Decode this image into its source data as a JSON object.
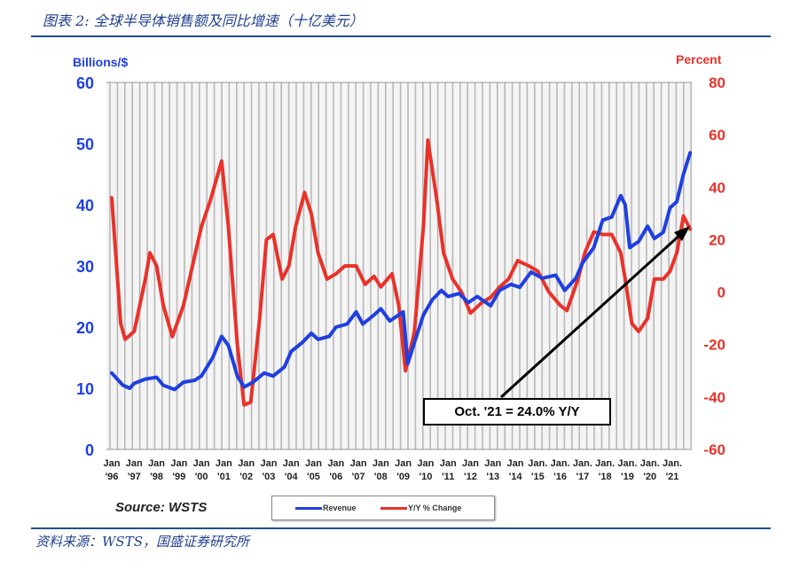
{
  "header": {
    "title": "图表 2:  全球半导体销售额及同比增速（十亿美元）"
  },
  "footer": {
    "source_note": "资料来源：WSTS，国盛证券研究所"
  },
  "chart_data": {
    "type": "line",
    "title": "",
    "ylabel_left": "Billions/$",
    "ylabel_right": "Percent",
    "ylim_left": [
      0,
      60
    ],
    "ylim_right": [
      -60,
      80
    ],
    "yticks_left": [
      "0",
      "10",
      "20",
      "30",
      "40",
      "50",
      "60"
    ],
    "yticks_right": [
      "-60",
      "-40",
      "-20",
      "0",
      "20",
      "40",
      "60",
      "80"
    ],
    "xlim": [
      1995.8,
      2021.95
    ],
    "xticks": [
      {
        "top": "Jan",
        "bottom": "'96"
      },
      {
        "top": "Jan",
        "bottom": "'97"
      },
      {
        "top": "Jan",
        "bottom": "'98"
      },
      {
        "top": "Jan",
        "bottom": "'99"
      },
      {
        "top": "Jan",
        "bottom": "'00"
      },
      {
        "top": "Jan",
        "bottom": "'01"
      },
      {
        "top": "Jan",
        "bottom": "'02"
      },
      {
        "top": "Jan",
        "bottom": "'03"
      },
      {
        "top": "Jan",
        "bottom": "'04"
      },
      {
        "top": "Jan",
        "bottom": "'05"
      },
      {
        "top": "Jan",
        "bottom": "'06"
      },
      {
        "top": "Jan",
        "bottom": "'07"
      },
      {
        "top": "Jan",
        "bottom": "'08"
      },
      {
        "top": "Jan",
        "bottom": "'09"
      },
      {
        "top": "Jan",
        "bottom": "'10"
      },
      {
        "top": "Jan",
        "bottom": "'11"
      },
      {
        "top": "Jan",
        "bottom": "'12"
      },
      {
        "top": "Jan",
        "bottom": "'13"
      },
      {
        "top": "Jan",
        "bottom": "'14"
      },
      {
        "top": "Jan.",
        "bottom": "'15"
      },
      {
        "top": "Jan.",
        "bottom": "'16"
      },
      {
        "top": "Jan.",
        "bottom": "'17"
      },
      {
        "top": "Jan.",
        "bottom": "'18"
      },
      {
        "top": "Jan.",
        "bottom": "'19"
      },
      {
        "top": "Jan.",
        "bottom": "'20"
      },
      {
        "top": "Jan.",
        "bottom": "'21"
      }
    ],
    "grid": "vertical",
    "series": [
      {
        "name": "Revenue",
        "axis": "left",
        "color": "#1f3fe0",
        "points": [
          [
            1996.0,
            12.5
          ],
          [
            1996.5,
            10.5
          ],
          [
            1996.8,
            10
          ],
          [
            1997.0,
            10.8
          ],
          [
            1997.5,
            11.5
          ],
          [
            1998.0,
            11.8
          ],
          [
            1998.3,
            10.5
          ],
          [
            1998.8,
            9.8
          ],
          [
            1999.2,
            11
          ],
          [
            1999.7,
            11.3
          ],
          [
            2000.0,
            12
          ],
          [
            2000.5,
            15
          ],
          [
            2000.9,
            18.5
          ],
          [
            2001.2,
            17
          ],
          [
            2001.6,
            12
          ],
          [
            2001.9,
            10.2
          ],
          [
            2002.3,
            11
          ],
          [
            2002.8,
            12.5
          ],
          [
            2003.2,
            12
          ],
          [
            2003.7,
            13.5
          ],
          [
            2004.0,
            16
          ],
          [
            2004.5,
            17.5
          ],
          [
            2004.9,
            19
          ],
          [
            2005.2,
            18
          ],
          [
            2005.7,
            18.5
          ],
          [
            2006.0,
            20
          ],
          [
            2006.5,
            20.5
          ],
          [
            2006.9,
            22.5
          ],
          [
            2007.2,
            20.5
          ],
          [
            2007.7,
            22
          ],
          [
            2008.0,
            23
          ],
          [
            2008.4,
            21
          ],
          [
            2008.8,
            22
          ],
          [
            2009.0,
            22.5
          ],
          [
            2009.2,
            14
          ],
          [
            2009.5,
            17.5
          ],
          [
            2009.9,
            22
          ],
          [
            2010.3,
            24.5
          ],
          [
            2010.7,
            26
          ],
          [
            2011.0,
            25
          ],
          [
            2011.5,
            25.5
          ],
          [
            2011.9,
            24
          ],
          [
            2012.3,
            25
          ],
          [
            2012.9,
            23.5
          ],
          [
            2013.3,
            26
          ],
          [
            2013.8,
            27
          ],
          [
            2014.2,
            26.5
          ],
          [
            2014.7,
            29
          ],
          [
            2015.2,
            28
          ],
          [
            2015.8,
            28.5
          ],
          [
            2016.2,
            26
          ],
          [
            2016.7,
            28
          ],
          [
            2017.0,
            30.5
          ],
          [
            2017.5,
            33
          ],
          [
            2017.9,
            37.5
          ],
          [
            2018.3,
            38
          ],
          [
            2018.7,
            41.5
          ],
          [
            2018.9,
            40
          ],
          [
            2019.1,
            33
          ],
          [
            2019.5,
            34
          ],
          [
            2019.9,
            36.5
          ],
          [
            2020.2,
            34.5
          ],
          [
            2020.6,
            35.5
          ],
          [
            2020.9,
            39.5
          ],
          [
            2021.2,
            40.5
          ],
          [
            2021.5,
            45
          ],
          [
            2021.8,
            48.5
          ]
        ]
      },
      {
        "name": "Y/Y % Change",
        "axis": "right",
        "color": "#e8322a",
        "points": [
          [
            1996.0,
            36
          ],
          [
            1996.4,
            -12
          ],
          [
            1996.6,
            -18
          ],
          [
            1997.0,
            -15
          ],
          [
            1997.5,
            5
          ],
          [
            1997.7,
            15
          ],
          [
            1998.0,
            10
          ],
          [
            1998.3,
            -5
          ],
          [
            1998.7,
            -17
          ],
          [
            1999.2,
            -5
          ],
          [
            1999.6,
            10
          ],
          [
            2000.0,
            25
          ],
          [
            2000.4,
            35
          ],
          [
            2000.9,
            50
          ],
          [
            2001.2,
            25
          ],
          [
            2001.6,
            -20
          ],
          [
            2001.9,
            -43
          ],
          [
            2002.2,
            -42
          ],
          [
            2002.6,
            -10
          ],
          [
            2002.9,
            20
          ],
          [
            2003.2,
            22
          ],
          [
            2003.6,
            5
          ],
          [
            2003.9,
            10
          ],
          [
            2004.2,
            25
          ],
          [
            2004.6,
            38
          ],
          [
            2004.9,
            30
          ],
          [
            2005.2,
            15
          ],
          [
            2005.6,
            5
          ],
          [
            2006.0,
            7
          ],
          [
            2006.4,
            10
          ],
          [
            2006.9,
            10
          ],
          [
            2007.3,
            3
          ],
          [
            2007.7,
            6
          ],
          [
            2008.0,
            2
          ],
          [
            2008.5,
            7
          ],
          [
            2008.8,
            -5
          ],
          [
            2009.1,
            -30
          ],
          [
            2009.5,
            -15
          ],
          [
            2009.9,
            25
          ],
          [
            2010.1,
            58
          ],
          [
            2010.5,
            35
          ],
          [
            2010.8,
            15
          ],
          [
            2011.2,
            5
          ],
          [
            2011.6,
            0
          ],
          [
            2012.0,
            -8
          ],
          [
            2012.5,
            -4
          ],
          [
            2012.9,
            -2
          ],
          [
            2013.3,
            2
          ],
          [
            2013.7,
            5
          ],
          [
            2014.1,
            12
          ],
          [
            2014.6,
            10
          ],
          [
            2015.0,
            8
          ],
          [
            2015.5,
            0
          ],
          [
            2016.0,
            -5
          ],
          [
            2016.3,
            -7
          ],
          [
            2016.8,
            5
          ],
          [
            2017.1,
            15
          ],
          [
            2017.5,
            23
          ],
          [
            2017.9,
            22
          ],
          [
            2018.3,
            22
          ],
          [
            2018.7,
            15
          ],
          [
            2018.9,
            5
          ],
          [
            2019.2,
            -12
          ],
          [
            2019.5,
            -15
          ],
          [
            2019.9,
            -10
          ],
          [
            2020.2,
            5
          ],
          [
            2020.6,
            5
          ],
          [
            2020.9,
            8
          ],
          [
            2021.2,
            15
          ],
          [
            2021.5,
            29
          ],
          [
            2021.8,
            24
          ]
        ]
      }
    ],
    "annotation": "Oct. '21 = 24.0% Y/Y",
    "source": "Source: WSTS",
    "legend": {
      "placement": "bottom-center",
      "entries": [
        "Revenue",
        "Y/Y % Change"
      ]
    }
  }
}
